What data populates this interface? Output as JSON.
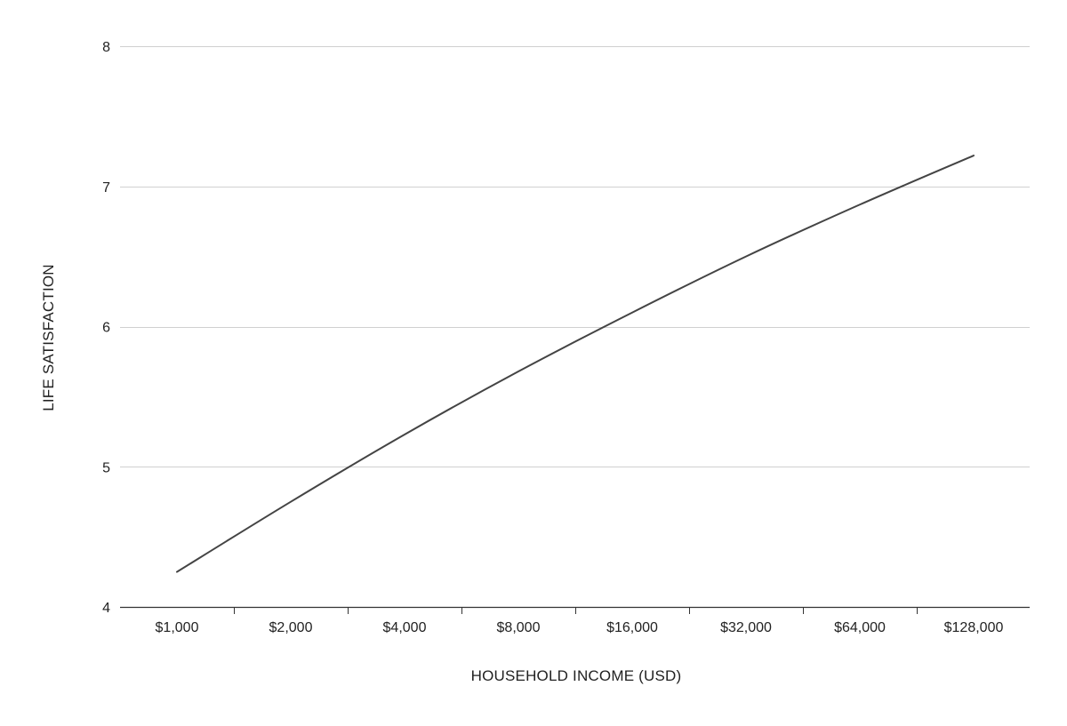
{
  "chart_data": {
    "type": "line",
    "title": "",
    "xlabel": "HOUSEHOLD INCOME (USD)",
    "ylabel": "LIFE SATISFACTION",
    "x_scale": "log2",
    "x_ticks": [
      1000,
      2000,
      4000,
      8000,
      16000,
      32000,
      64000,
      128000
    ],
    "x_tick_labels": [
      "$1,000",
      "$2,000",
      "$4,000",
      "$8,000",
      "$16,000",
      "$32,000",
      "$64,000",
      "$128,000"
    ],
    "y_ticks": [
      4,
      5,
      6,
      7,
      8
    ],
    "y_tick_labels": [
      "4",
      "5",
      "6",
      "7",
      "8"
    ],
    "ylim": [
      4,
      8
    ],
    "grid": "horizontal",
    "legend": "none",
    "colors": {
      "line": "#444444",
      "grid": "#d0d0d0",
      "axis": "#333333"
    },
    "series": [
      {
        "x": [
          1000,
          2000,
          4000,
          8000,
          16000,
          32000,
          64000,
          128000
        ],
        "y": [
          4.25,
          4.75,
          5.23,
          5.68,
          6.1,
          6.5,
          6.87,
          7.22
        ]
      }
    ]
  }
}
